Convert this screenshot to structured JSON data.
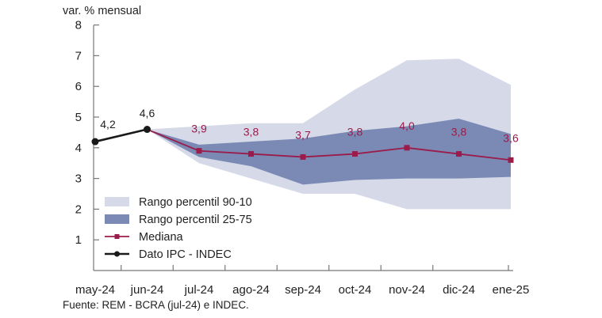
{
  "chart_data": {
    "type": "line",
    "title": "var. % mensual",
    "xlabel": "",
    "ylabel": "var. % mensual",
    "ylim": [
      0,
      8
    ],
    "yticks": [
      "1",
      "2",
      "3",
      "4",
      "5",
      "6",
      "7",
      "8"
    ],
    "categories": [
      "may-24",
      "jun-24",
      "jul-24",
      "ago-24",
      "sep-24",
      "oct-24",
      "nov-24",
      "dic-24",
      "ene-25"
    ],
    "grid": false,
    "legend_position": "bottom-left",
    "series": [
      {
        "name": "Rango percentil 90-10",
        "type": "band",
        "color": "#d5d9e8",
        "x": [
          "jun-24",
          "jul-24",
          "ago-24",
          "sep-24",
          "oct-24",
          "nov-24",
          "dic-24",
          "ene-25"
        ],
        "upper": [
          4.6,
          4.7,
          4.8,
          4.8,
          5.9,
          6.85,
          6.9,
          6.05
        ],
        "lower": [
          4.6,
          3.5,
          3.0,
          2.5,
          2.5,
          2.0,
          2.0,
          2.0
        ]
      },
      {
        "name": "Rango percentil 25-75",
        "type": "band",
        "color": "#7a8ab4",
        "x": [
          "jun-24",
          "jul-24",
          "ago-24",
          "sep-24",
          "oct-24",
          "nov-24",
          "dic-24",
          "ene-25"
        ],
        "upper": [
          4.6,
          4.1,
          4.2,
          4.3,
          4.55,
          4.7,
          4.95,
          4.45
        ],
        "lower": [
          4.6,
          3.7,
          3.4,
          2.8,
          2.95,
          3.0,
          3.0,
          3.05
        ]
      },
      {
        "name": "Mediana",
        "type": "line",
        "color": "#9b1b4a",
        "marker": "square",
        "x": [
          "jun-24",
          "jul-24",
          "ago-24",
          "sep-24",
          "oct-24",
          "nov-24",
          "dic-24",
          "ene-25"
        ],
        "values": [
          4.6,
          3.9,
          3.8,
          3.7,
          3.8,
          4.0,
          3.8,
          3.6
        ],
        "labels": [
          "",
          "3,9",
          "3,8",
          "3,7",
          "3,8",
          "4,0",
          "3,8",
          "3,6"
        ]
      },
      {
        "name": "Dato IPC - INDEC",
        "type": "line",
        "color": "#1a1a1a",
        "marker": "circle",
        "x": [
          "may-24",
          "jun-24"
        ],
        "values": [
          4.2,
          4.6
        ],
        "labels": [
          "4,2",
          "4,6"
        ]
      }
    ],
    "legend": [
      "Rango percentil 90-10",
      "Rango percentil 25-75",
      "Mediana",
      "Dato IPC - INDEC"
    ],
    "source": "Fuente: REM - BCRA (jul-24) e INDEC."
  }
}
